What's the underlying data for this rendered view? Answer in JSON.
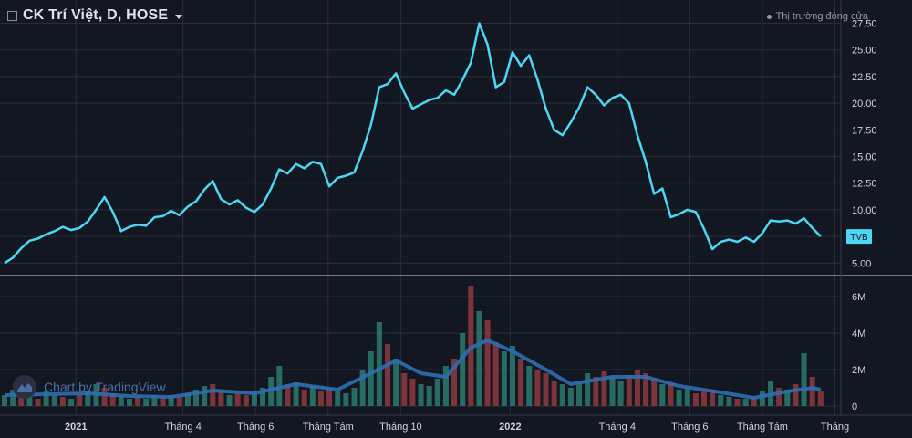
{
  "header": {
    "symbol_title": "CK Trí Việt, D, HOSE",
    "market_status": "Thị trường đóng cửa"
  },
  "watermark": "Chart by TradingView",
  "colors": {
    "background": "#131722",
    "grid": "#2a2e39",
    "price_line": "#4dd7f5",
    "volume_ma": "#2d6fb3",
    "volume_up": "#2c7a6e",
    "volume_down": "#8e3b3e",
    "price_label_bg": "#4dd7f5"
  },
  "chart_data": [
    {
      "type": "line",
      "name": "price",
      "symbol_label": "TVB",
      "last_value": 7.5,
      "ylim": [
        4.0,
        29.0
      ],
      "y_ticks": [
        "27.50",
        "25.00",
        "22.50",
        "20.00",
        "17.50",
        "15.00",
        "12.50",
        "10.00",
        "7.50",
        "5.00"
      ],
      "x_ticks": [
        "2021",
        "Tháng 4",
        "Tháng 6",
        "Tháng Tám",
        "Tháng 10",
        "2022",
        "Tháng 4",
        "Tháng 6",
        "Tháng Tám",
        "Tháng"
      ],
      "x_tick_dates": [
        "2021-01-01",
        "2021-04-01",
        "2021-06-01",
        "2021-08-01",
        "2021-10-01",
        "2022-01-01",
        "2022-04-01",
        "2022-06-01",
        "2022-08-01",
        "2022-10-01"
      ],
      "series": [
        {
          "points": [
            [
              "2020-11-02",
              5.0
            ],
            [
              "2020-11-09",
              5.5
            ],
            [
              "2020-11-16",
              6.4
            ],
            [
              "2020-11-23",
              7.1
            ],
            [
              "2020-11-30",
              7.3
            ],
            [
              "2020-12-07",
              7.7
            ],
            [
              "2020-12-14",
              8.0
            ],
            [
              "2020-12-21",
              8.4
            ],
            [
              "2020-12-28",
              8.1
            ],
            [
              "2021-01-04",
              8.3
            ],
            [
              "2021-01-11",
              8.9
            ],
            [
              "2021-01-18",
              10.0
            ],
            [
              "2021-01-25",
              11.2
            ],
            [
              "2021-02-01",
              9.8
            ],
            [
              "2021-02-08",
              8.0
            ],
            [
              "2021-02-15",
              8.4
            ],
            [
              "2021-02-22",
              8.6
            ],
            [
              "2021-03-01",
              8.5
            ],
            [
              "2021-03-08",
              9.3
            ],
            [
              "2021-03-15",
              9.4
            ],
            [
              "2021-03-22",
              9.9
            ],
            [
              "2021-03-29",
              9.5
            ],
            [
              "2021-04-05",
              10.3
            ],
            [
              "2021-04-12",
              10.8
            ],
            [
              "2021-04-19",
              11.9
            ],
            [
              "2021-04-26",
              12.7
            ],
            [
              "2021-05-03",
              11.0
            ],
            [
              "2021-05-10",
              10.5
            ],
            [
              "2021-05-17",
              10.9
            ],
            [
              "2021-05-24",
              10.2
            ],
            [
              "2021-05-31",
              9.8
            ],
            [
              "2021-06-07",
              10.5
            ],
            [
              "2021-06-14",
              12.0
            ],
            [
              "2021-06-21",
              13.8
            ],
            [
              "2021-06-28",
              13.4
            ],
            [
              "2021-07-05",
              14.3
            ],
            [
              "2021-07-12",
              13.9
            ],
            [
              "2021-07-19",
              14.5
            ],
            [
              "2021-07-26",
              14.3
            ],
            [
              "2021-08-02",
              12.2
            ],
            [
              "2021-08-09",
              13.0
            ],
            [
              "2021-08-16",
              13.2
            ],
            [
              "2021-08-23",
              13.5
            ],
            [
              "2021-08-30",
              15.5
            ],
            [
              "2021-09-06",
              18.0
            ],
            [
              "2021-09-13",
              21.5
            ],
            [
              "2021-09-20",
              21.8
            ],
            [
              "2021-09-27",
              22.8
            ],
            [
              "2021-10-04",
              21.0
            ],
            [
              "2021-10-11",
              19.5
            ],
            [
              "2021-10-18",
              19.9
            ],
            [
              "2021-10-25",
              20.3
            ],
            [
              "2021-11-01",
              20.5
            ],
            [
              "2021-11-08",
              21.2
            ],
            [
              "2021-11-15",
              20.8
            ],
            [
              "2021-11-22",
              22.2
            ],
            [
              "2021-11-29",
              23.8
            ],
            [
              "2021-12-06",
              27.5
            ],
            [
              "2021-12-13",
              25.5
            ],
            [
              "2021-12-20",
              21.5
            ],
            [
              "2021-12-27",
              22.0
            ],
            [
              "2022-01-03",
              24.8
            ],
            [
              "2022-01-10",
              23.5
            ],
            [
              "2022-01-17",
              24.5
            ],
            [
              "2022-01-24",
              22.2
            ],
            [
              "2022-01-31",
              19.5
            ],
            [
              "2022-02-07",
              17.5
            ],
            [
              "2022-02-14",
              17.0
            ],
            [
              "2022-02-21",
              18.2
            ],
            [
              "2022-02-28",
              19.6
            ],
            [
              "2022-03-07",
              21.5
            ],
            [
              "2022-03-14",
              20.8
            ],
            [
              "2022-03-21",
              19.8
            ],
            [
              "2022-03-28",
              20.5
            ],
            [
              "2022-04-04",
              20.8
            ],
            [
              "2022-04-11",
              20.0
            ],
            [
              "2022-04-18",
              17.0
            ],
            [
              "2022-04-25",
              14.5
            ],
            [
              "2022-05-02",
              11.5
            ],
            [
              "2022-05-09",
              12.0
            ],
            [
              "2022-05-16",
              9.3
            ],
            [
              "2022-05-23",
              9.6
            ],
            [
              "2022-05-30",
              10.0
            ],
            [
              "2022-06-06",
              9.8
            ],
            [
              "2022-06-13",
              8.2
            ],
            [
              "2022-06-20",
              6.3
            ],
            [
              "2022-06-27",
              7.0
            ],
            [
              "2022-07-04",
              7.2
            ],
            [
              "2022-07-11",
              7.0
            ],
            [
              "2022-07-18",
              7.4
            ],
            [
              "2022-07-25",
              7.0
            ],
            [
              "2022-08-01",
              7.8
            ],
            [
              "2022-08-08",
              9.0
            ],
            [
              "2022-08-15",
              8.9
            ],
            [
              "2022-08-22",
              9.0
            ],
            [
              "2022-08-29",
              8.7
            ],
            [
              "2022-09-05",
              9.2
            ],
            [
              "2022-09-12",
              8.3
            ],
            [
              "2022-09-19",
              7.5
            ]
          ]
        }
      ]
    },
    {
      "type": "bar",
      "name": "volume",
      "ylim": [
        0,
        7000000
      ],
      "y_ticks": [
        "6M",
        "4M",
        "2M",
        "0"
      ],
      "x_ticks": [
        "2021",
        "Tháng 4",
        "Tháng 6",
        "Tháng Tám",
        "Tháng 10",
        "2022",
        "Tháng 4",
        "Tháng 6",
        "Tháng Tám",
        "Tháng"
      ],
      "x_tick_dates": [
        "2021-01-01",
        "2021-04-01",
        "2021-06-01",
        "2021-08-01",
        "2021-10-01",
        "2022-01-01",
        "2022-04-01",
        "2022-06-01",
        "2022-08-01",
        "2022-10-01"
      ],
      "bars": [
        [
          "2020-11-02",
          0.6,
          "up"
        ],
        [
          "2020-11-09",
          0.9,
          "up"
        ],
        [
          "2020-11-16",
          0.5,
          "down"
        ],
        [
          "2020-11-23",
          0.7,
          "up"
        ],
        [
          "2020-11-30",
          0.4,
          "down"
        ],
        [
          "2020-12-07",
          0.8,
          "up"
        ],
        [
          "2020-12-14",
          0.6,
          "up"
        ],
        [
          "2020-12-21",
          0.5,
          "down"
        ],
        [
          "2020-12-28",
          0.4,
          "up"
        ],
        [
          "2021-01-04",
          0.6,
          "down"
        ],
        [
          "2021-01-11",
          0.8,
          "up"
        ],
        [
          "2021-01-18",
          1.2,
          "up"
        ],
        [
          "2021-01-25",
          1.0,
          "down"
        ],
        [
          "2021-02-01",
          0.7,
          "down"
        ],
        [
          "2021-02-08",
          0.5,
          "up"
        ],
        [
          "2021-02-15",
          0.4,
          "up"
        ],
        [
          "2021-02-22",
          0.5,
          "down"
        ],
        [
          "2021-03-01",
          0.4,
          "up"
        ],
        [
          "2021-03-08",
          0.6,
          "up"
        ],
        [
          "2021-03-15",
          0.5,
          "down"
        ],
        [
          "2021-03-22",
          0.6,
          "up"
        ],
        [
          "2021-03-29",
          0.5,
          "down"
        ],
        [
          "2021-04-05",
          0.7,
          "up"
        ],
        [
          "2021-04-12",
          0.9,
          "up"
        ],
        [
          "2021-04-19",
          1.1,
          "up"
        ],
        [
          "2021-04-26",
          1.2,
          "down"
        ],
        [
          "2021-05-03",
          0.8,
          "down"
        ],
        [
          "2021-05-10",
          0.6,
          "up"
        ],
        [
          "2021-05-17",
          0.7,
          "down"
        ],
        [
          "2021-05-24",
          0.6,
          "down"
        ],
        [
          "2021-05-31",
          0.7,
          "up"
        ],
        [
          "2021-06-07",
          1.0,
          "up"
        ],
        [
          "2021-06-14",
          1.6,
          "up"
        ],
        [
          "2021-06-21",
          2.2,
          "up"
        ],
        [
          "2021-06-28",
          1.2,
          "down"
        ],
        [
          "2021-07-05",
          1.3,
          "up"
        ],
        [
          "2021-07-12",
          0.9,
          "down"
        ],
        [
          "2021-07-19",
          1.1,
          "up"
        ],
        [
          "2021-07-26",
          0.8,
          "down"
        ],
        [
          "2021-08-02",
          1.0,
          "down"
        ],
        [
          "2021-08-09",
          0.8,
          "up"
        ],
        [
          "2021-08-16",
          0.7,
          "up"
        ],
        [
          "2021-08-23",
          1.0,
          "up"
        ],
        [
          "2021-08-30",
          2.0,
          "up"
        ],
        [
          "2021-09-06",
          3.0,
          "up"
        ],
        [
          "2021-09-13",
          4.6,
          "up"
        ],
        [
          "2021-09-20",
          3.4,
          "down"
        ],
        [
          "2021-09-27",
          2.6,
          "up"
        ],
        [
          "2021-10-04",
          1.8,
          "down"
        ],
        [
          "2021-10-11",
          1.5,
          "down"
        ],
        [
          "2021-10-18",
          1.2,
          "up"
        ],
        [
          "2021-10-25",
          1.1,
          "up"
        ],
        [
          "2021-11-01",
          1.5,
          "up"
        ],
        [
          "2021-11-08",
          2.2,
          "up"
        ],
        [
          "2021-11-15",
          2.6,
          "down"
        ],
        [
          "2021-11-22",
          4.0,
          "up"
        ],
        [
          "2021-11-29",
          6.6,
          "down"
        ],
        [
          "2021-12-06",
          5.2,
          "up"
        ],
        [
          "2021-12-13",
          4.7,
          "down"
        ],
        [
          "2021-12-20",
          3.5,
          "down"
        ],
        [
          "2021-12-27",
          3.0,
          "up"
        ],
        [
          "2022-01-03",
          3.3,
          "up"
        ],
        [
          "2022-01-10",
          2.6,
          "down"
        ],
        [
          "2022-01-17",
          2.2,
          "up"
        ],
        [
          "2022-01-24",
          2.0,
          "down"
        ],
        [
          "2022-01-31",
          1.8,
          "down"
        ],
        [
          "2022-02-07",
          1.4,
          "down"
        ],
        [
          "2022-02-14",
          1.2,
          "up"
        ],
        [
          "2022-02-21",
          1.0,
          "up"
        ],
        [
          "2022-02-28",
          1.3,
          "up"
        ],
        [
          "2022-03-07",
          1.8,
          "up"
        ],
        [
          "2022-03-14",
          1.6,
          "down"
        ],
        [
          "2022-03-21",
          1.9,
          "down"
        ],
        [
          "2022-03-28",
          1.6,
          "up"
        ],
        [
          "2022-04-04",
          1.4,
          "up"
        ],
        [
          "2022-04-11",
          1.7,
          "down"
        ],
        [
          "2022-04-18",
          2.0,
          "down"
        ],
        [
          "2022-04-25",
          1.8,
          "down"
        ],
        [
          "2022-05-02",
          1.5,
          "down"
        ],
        [
          "2022-05-09",
          1.2,
          "up"
        ],
        [
          "2022-05-16",
          1.3,
          "down"
        ],
        [
          "2022-05-23",
          0.9,
          "up"
        ],
        [
          "2022-05-30",
          1.0,
          "up"
        ],
        [
          "2022-06-06",
          0.7,
          "down"
        ],
        [
          "2022-06-13",
          0.8,
          "down"
        ],
        [
          "2022-06-20",
          0.9,
          "down"
        ],
        [
          "2022-06-27",
          0.6,
          "up"
        ],
        [
          "2022-07-04",
          0.5,
          "up"
        ],
        [
          "2022-07-11",
          0.4,
          "down"
        ],
        [
          "2022-07-18",
          0.4,
          "up"
        ],
        [
          "2022-07-25",
          0.5,
          "down"
        ],
        [
          "2022-08-01",
          0.8,
          "up"
        ],
        [
          "2022-08-08",
          1.4,
          "up"
        ],
        [
          "2022-08-15",
          1.0,
          "down"
        ],
        [
          "2022-08-22",
          0.9,
          "up"
        ],
        [
          "2022-08-29",
          1.2,
          "down"
        ],
        [
          "2022-09-05",
          2.9,
          "up"
        ],
        [
          "2022-09-12",
          1.6,
          "down"
        ],
        [
          "2022-09-19",
          0.8,
          "down"
        ]
      ],
      "ma_series": [
        [
          "2020-11-02",
          0.6
        ],
        [
          "2020-12-07",
          0.65
        ],
        [
          "2021-01-11",
          0.7
        ],
        [
          "2021-02-15",
          0.55
        ],
        [
          "2021-03-22",
          0.5
        ],
        [
          "2021-04-26",
          0.85
        ],
        [
          "2021-05-31",
          0.7
        ],
        [
          "2021-07-05",
          1.2
        ],
        [
          "2021-08-09",
          0.9
        ],
        [
          "2021-09-06",
          1.8
        ],
        [
          "2021-09-27",
          2.5
        ],
        [
          "2021-10-18",
          1.8
        ],
        [
          "2021-11-08",
          1.6
        ],
        [
          "2021-11-29",
          3.2
        ],
        [
          "2021-12-13",
          3.6
        ],
        [
          "2022-01-03",
          3.0
        ],
        [
          "2022-01-31",
          2.0
        ],
        [
          "2022-02-21",
          1.2
        ],
        [
          "2022-03-28",
          1.6
        ],
        [
          "2022-04-25",
          1.6
        ],
        [
          "2022-05-23",
          1.1
        ],
        [
          "2022-06-27",
          0.75
        ],
        [
          "2022-07-25",
          0.45
        ],
        [
          "2022-08-22",
          0.8
        ],
        [
          "2022-09-12",
          1.0
        ],
        [
          "2022-09-19",
          0.9
        ]
      ]
    }
  ]
}
